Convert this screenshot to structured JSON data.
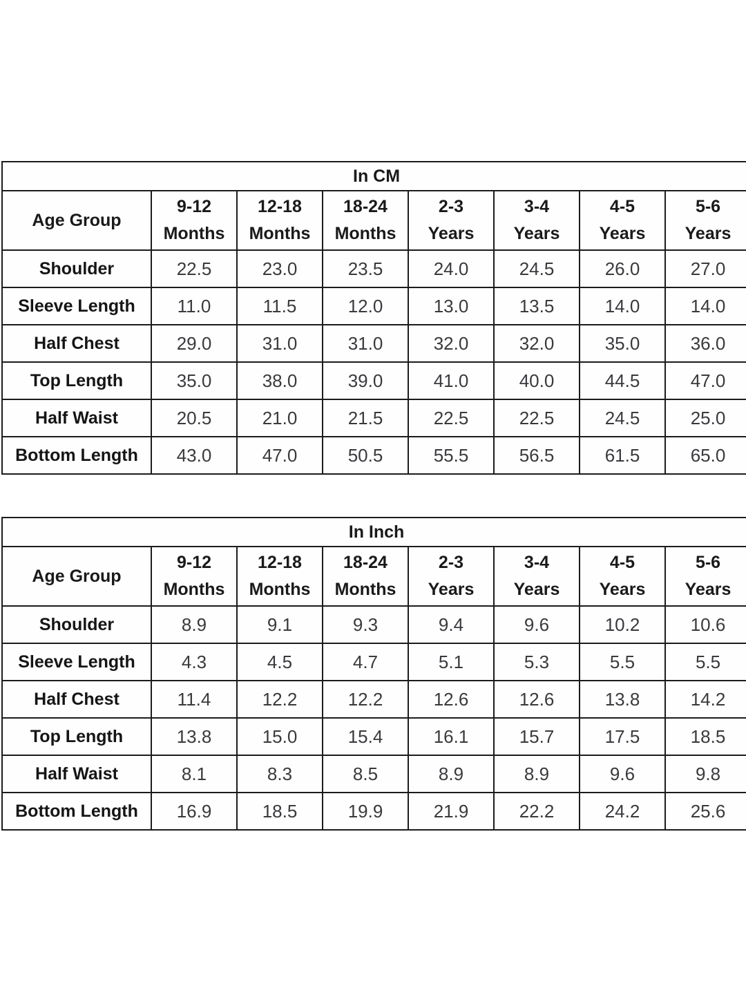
{
  "colors": {
    "border": "#1b1b1b",
    "label_text": "#151515",
    "value_text": "#3a3a3e",
    "background": "#ffffff"
  },
  "tables": [
    {
      "title": "In CM",
      "header_col": "Age Group",
      "age_groups": [
        {
          "line1": "9-12",
          "line2": "Months"
        },
        {
          "line1": "12-18",
          "line2": "Months"
        },
        {
          "line1": "18-24",
          "line2": "Months"
        },
        {
          "line1": "2-3",
          "line2": "Years"
        },
        {
          "line1": "3-4",
          "line2": "Years"
        },
        {
          "line1": "4-5",
          "line2": "Years"
        },
        {
          "line1": "5-6",
          "line2": "Years"
        }
      ],
      "rows": [
        {
          "label": "Shoulder",
          "values": [
            "22.5",
            "23.0",
            "23.5",
            "24.0",
            "24.5",
            "26.0",
            "27.0"
          ]
        },
        {
          "label": "Sleeve Length",
          "values": [
            "11.0",
            "11.5",
            "12.0",
            "13.0",
            "13.5",
            "14.0",
            "14.0"
          ]
        },
        {
          "label": "Half Chest",
          "values": [
            "29.0",
            "31.0",
            "31.0",
            "32.0",
            "32.0",
            "35.0",
            "36.0"
          ]
        },
        {
          "label": "Top Length",
          "values": [
            "35.0",
            "38.0",
            "39.0",
            "41.0",
            "40.0",
            "44.5",
            "47.0"
          ]
        },
        {
          "label": "Half Waist",
          "values": [
            "20.5",
            "21.0",
            "21.5",
            "22.5",
            "22.5",
            "24.5",
            "25.0"
          ]
        },
        {
          "label": "Bottom Length",
          "values": [
            "43.0",
            "47.0",
            "50.5",
            "55.5",
            "56.5",
            "61.5",
            "65.0"
          ]
        }
      ]
    },
    {
      "title": "In Inch",
      "header_col": "Age Group",
      "age_groups": [
        {
          "line1": "9-12",
          "line2": "Months"
        },
        {
          "line1": "12-18",
          "line2": "Months"
        },
        {
          "line1": "18-24",
          "line2": "Months"
        },
        {
          "line1": "2-3",
          "line2": "Years"
        },
        {
          "line1": "3-4",
          "line2": "Years"
        },
        {
          "line1": "4-5",
          "line2": "Years"
        },
        {
          "line1": "5-6",
          "line2": "Years"
        }
      ],
      "rows": [
        {
          "label": "Shoulder",
          "values": [
            "8.9",
            "9.1",
            "9.3",
            "9.4",
            "9.6",
            "10.2",
            "10.6"
          ]
        },
        {
          "label": "Sleeve Length",
          "values": [
            "4.3",
            "4.5",
            "4.7",
            "5.1",
            "5.3",
            "5.5",
            "5.5"
          ]
        },
        {
          "label": "Half Chest",
          "values": [
            "11.4",
            "12.2",
            "12.2",
            "12.6",
            "12.6",
            "13.8",
            "14.2"
          ]
        },
        {
          "label": "Top Length",
          "values": [
            "13.8",
            "15.0",
            "15.4",
            "16.1",
            "15.7",
            "17.5",
            "18.5"
          ]
        },
        {
          "label": "Half Waist",
          "values": [
            "8.1",
            "8.3",
            "8.5",
            "8.9",
            "8.9",
            "9.6",
            "9.8"
          ]
        },
        {
          "label": "Bottom Length",
          "values": [
            "16.9",
            "18.5",
            "19.9",
            "21.9",
            "22.2",
            "24.2",
            "25.6"
          ]
        }
      ]
    }
  ]
}
